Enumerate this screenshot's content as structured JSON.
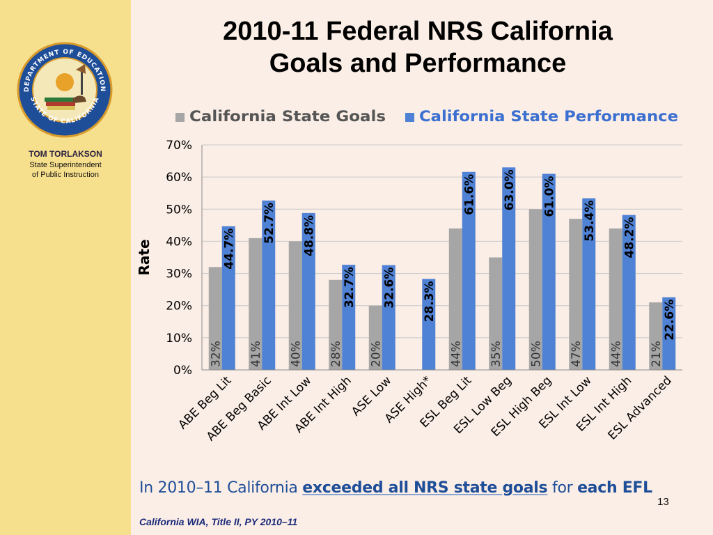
{
  "slide": {
    "title_line1": "2010-11 Federal NRS California",
    "title_line2": "Goals and Performance",
    "page_number": "13",
    "footer": "California WIA, Title II, PY 2010–11",
    "bottom_text_plain": "In 2010–11 California",
    "bottom_text_bold": "exceeded all NRS state goals",
    "bottom_text_mid": "for",
    "bottom_text_end": "each EFL"
  },
  "sidebar": {
    "seal_top_text": "DEPARTMENT OF EDUCATION",
    "seal_bottom_text": "STATE OF CALIFORNIA",
    "superintendent_name": "TOM TORLAKSON",
    "superintendent_title_line1": "State Superintendent",
    "superintendent_title_line2": "of Public Instruction"
  },
  "colors": {
    "goal": "#a6a6a6",
    "performance": "#4f81d4",
    "performance_text": "#3b6fd0",
    "gridline": "#c8c8c8"
  },
  "chart_data": {
    "type": "bar",
    "title": "",
    "xlabel": "",
    "ylabel": "Rate",
    "ylim": [
      0,
      70
    ],
    "ytick_step": 10,
    "ytick_labels": [
      "0%",
      "10%",
      "20%",
      "30%",
      "40%",
      "50%",
      "60%",
      "70%"
    ],
    "grid": true,
    "legend_position": "top",
    "categories": [
      "ABE Beg Lit",
      "ABE Beg Basic",
      "ABE Int Low",
      "ABE Int High",
      "ASE Low",
      "ASE High*",
      "ESL Beg Lit",
      "ESL Low Beg",
      "ESL High Beg",
      "ESL Int Low",
      "ESL Int High",
      "ESL Advanced"
    ],
    "series": [
      {
        "name": "California State Goals",
        "values": [
          32,
          41,
          40,
          28,
          20,
          null,
          44,
          35,
          50,
          47,
          44,
          21
        ],
        "labels": [
          "32%",
          "41%",
          "40%",
          "28%",
          "20%",
          "",
          "44%",
          "35%",
          "50%",
          "47%",
          "44%",
          "21%"
        ]
      },
      {
        "name": "California State Performance",
        "values": [
          44.7,
          52.7,
          48.8,
          32.7,
          32.6,
          28.3,
          61.6,
          63.0,
          61.0,
          53.4,
          48.2,
          22.6
        ],
        "labels": [
          "44.7%",
          "52.7%",
          "48.8%",
          "32.7%",
          "32.6%",
          "28.3%",
          "61.6%",
          "63.0%",
          "61.0%",
          "53.4%",
          "48.2%",
          "22.6%"
        ]
      }
    ]
  }
}
